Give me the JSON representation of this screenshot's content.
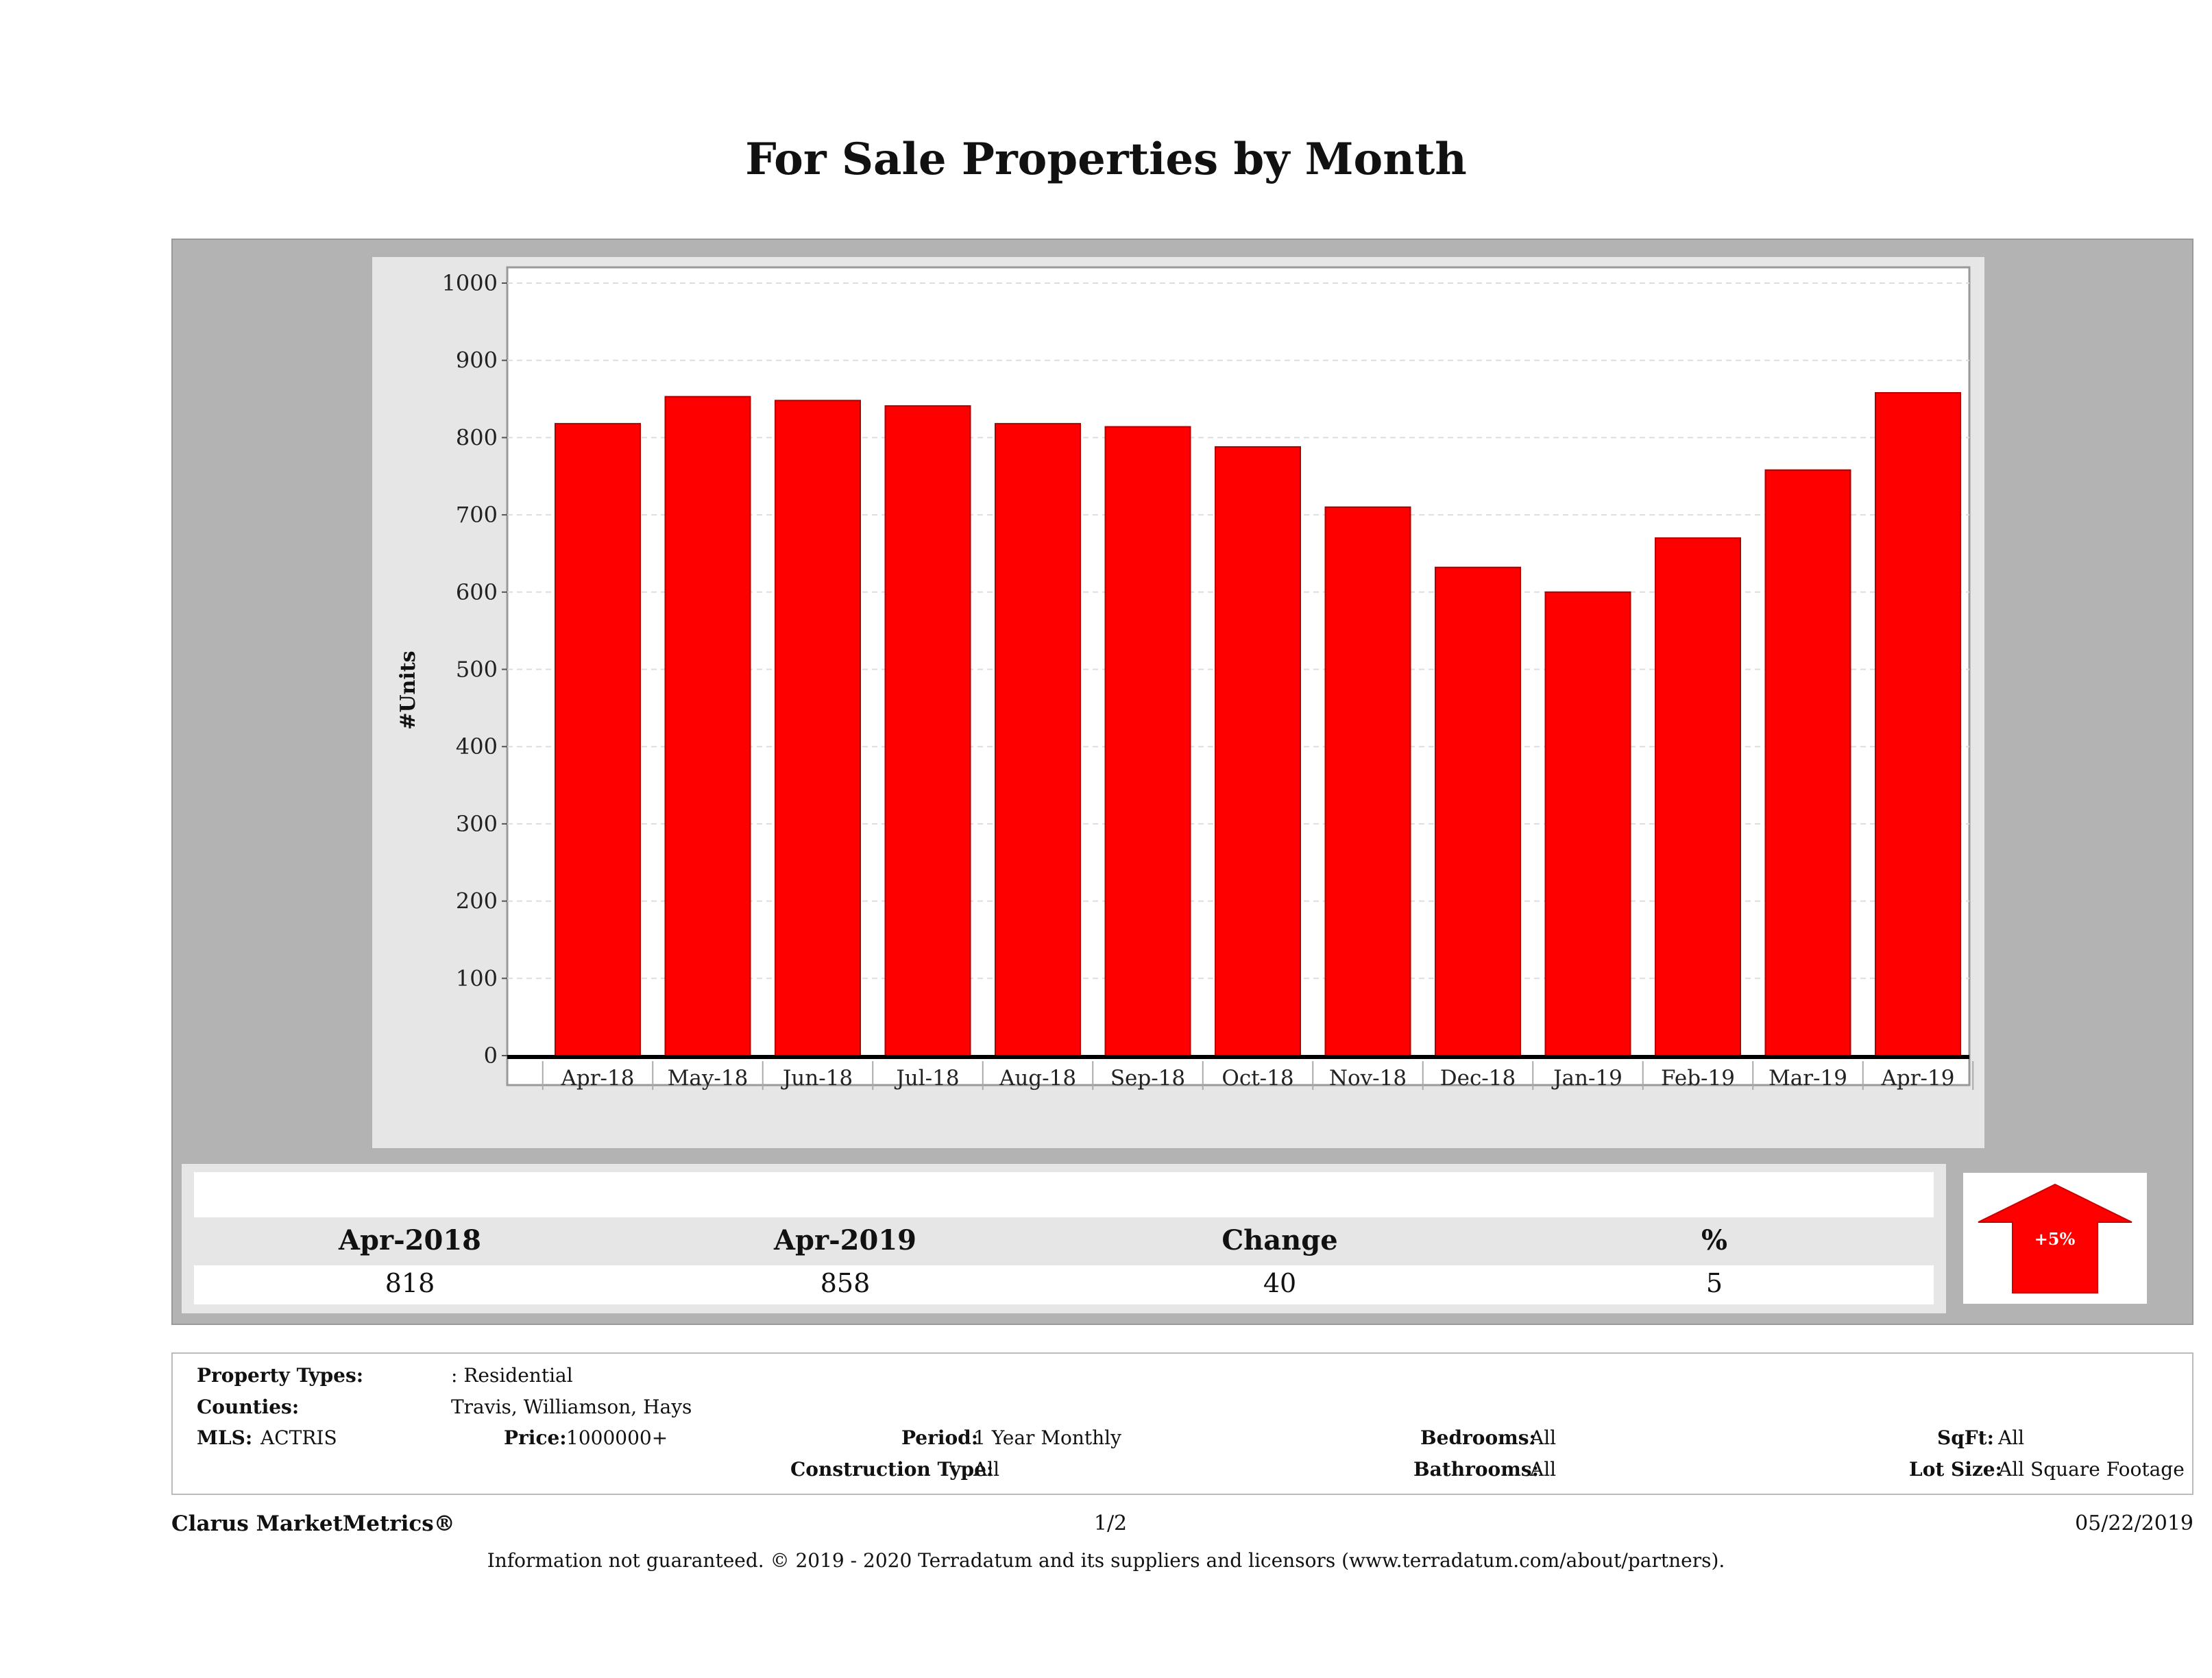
{
  "chart_data": {
    "type": "bar",
    "title": "For Sale Properties by Month",
    "xlabel": "",
    "ylabel": "#Units",
    "categories": [
      "Apr-18",
      "May-18",
      "Jun-18",
      "Jul-18",
      "Aug-18",
      "Sep-18",
      "Oct-18",
      "Nov-18",
      "Dec-18",
      "Jan-19",
      "Feb-19",
      "Mar-19",
      "Apr-19"
    ],
    "values": [
      818,
      853,
      848,
      841,
      818,
      814,
      788,
      710,
      632,
      600,
      670,
      758,
      858
    ],
    "ylim": [
      0,
      1000
    ],
    "yticks": [
      "0",
      "100",
      "200",
      "300",
      "400",
      "500",
      "600",
      "700",
      "800",
      "900",
      "1000"
    ],
    "grid": true,
    "bar_color": "#ff0000"
  },
  "summary": {
    "labels": [
      "Apr-2018",
      "Apr-2019",
      "Change",
      "%"
    ],
    "values": [
      "818",
      "858",
      "40",
      "5"
    ],
    "arrow_text": "+5%",
    "arrow_color": "#ff0000"
  },
  "criteria": {
    "property_types_label": "Property Types:",
    "property_types_value": ": Residential",
    "counties_label": "Counties:",
    "counties_value": "Travis, Williamson, Hays",
    "mls_label": "MLS:",
    "mls_value": "ACTRIS",
    "price_label": "Price:",
    "price_value": "1000000+",
    "period_label": "Period:",
    "period_value": "1 Year Monthly",
    "construction_label": "Construction Type:",
    "construction_value": "All",
    "bedrooms_label": "Bedrooms:",
    "bedrooms_value": "All",
    "bathrooms_label": "Bathrooms:",
    "bathrooms_value": "All",
    "sqft_label": "SqFt:",
    "sqft_value": "All",
    "lotsize_label": "Lot Size:",
    "lotsize_value": "All Square Footage"
  },
  "footer": {
    "brand": "Clarus MarketMetrics®",
    "page": "1/2",
    "date": "05/22/2019",
    "disclaimer": "Information not guaranteed. © 2019 - 2020 Terradatum and its suppliers and licensors (www.terradatum.com/about/partners)."
  }
}
